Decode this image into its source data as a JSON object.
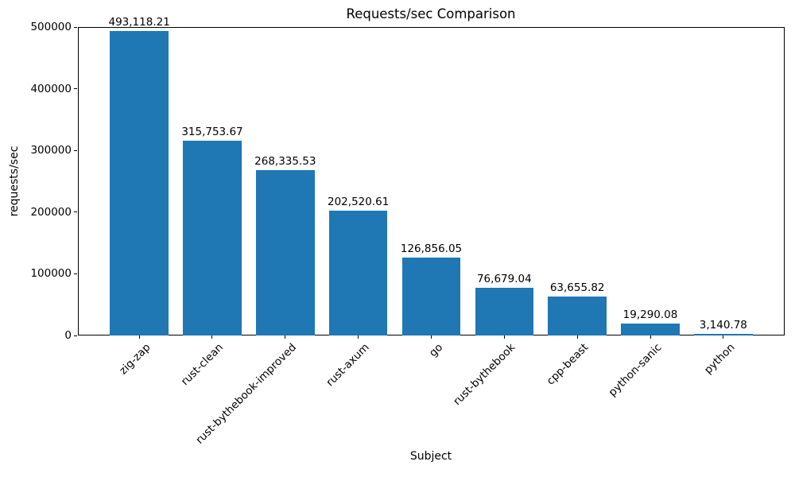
{
  "chart": {
    "title": "Requests/sec Comparison",
    "xlabel": "Subject",
    "ylabel": "requests/sec"
  },
  "chart_data": {
    "type": "bar",
    "title": "Requests/sec Comparison",
    "xlabel": "Subject",
    "ylabel": "requests/sec",
    "categories": [
      "zig-zap",
      "rust-clean",
      "rust-bythebook-improved",
      "rust-axum",
      "go",
      "rust-bythebook",
      "cpp-beast",
      "python-sanic",
      "python"
    ],
    "values": [
      493118.21,
      315753.67,
      268335.53,
      202520.61,
      126856.05,
      76679.04,
      63655.82,
      19290.08,
      3140.78
    ],
    "value_labels": [
      "493,118.21",
      "315,753.67",
      "268,335.53",
      "202,520.61",
      "126,856.05",
      "76,679.04",
      "63,655.82",
      "19,290.08",
      "3,140.78"
    ],
    "ylim": [
      0,
      500000
    ],
    "yticks": [
      0,
      100000,
      200000,
      300000,
      400000,
      500000
    ],
    "x_tick_rotation": 45,
    "bar_color": "#1f77b4",
    "axis_color": "#000000",
    "grid": false,
    "legend": null
  }
}
